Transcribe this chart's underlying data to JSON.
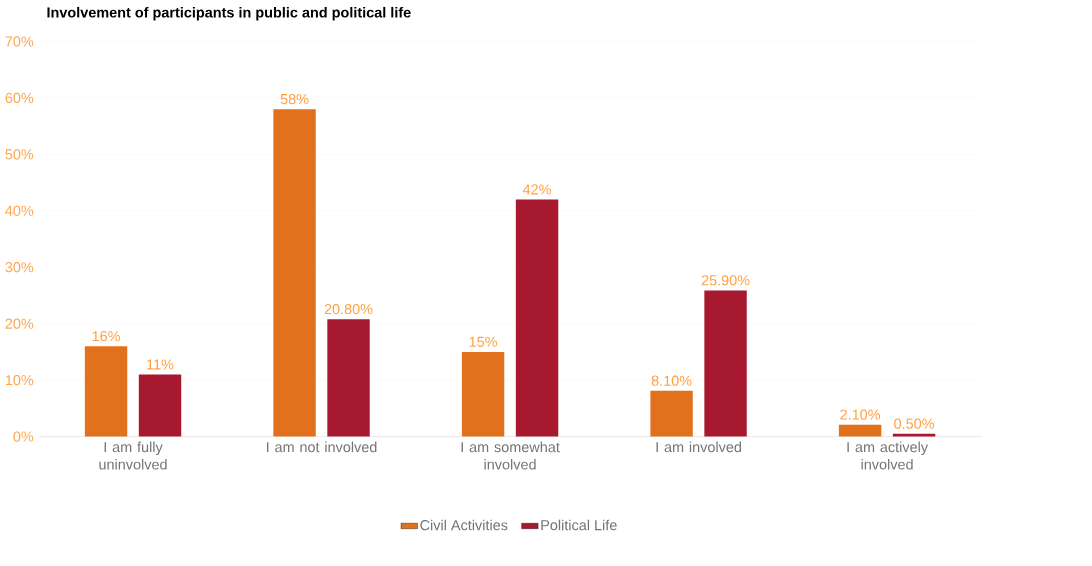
{
  "chart_data": {
    "type": "bar",
    "title": "Involvement of participants in public and political life",
    "categories": [
      "I am fully uninvolved",
      "I am not involved",
      "I am somewhat involved",
      "I am involved",
      "I am actively involved"
    ],
    "series": [
      {
        "name": "Civil Activities",
        "color": "#e2711d",
        "values": [
          16,
          58,
          15,
          8.1,
          2.1
        ],
        "value_labels": [
          "16%",
          "58%",
          "15%",
          "8.10%",
          "2.10%"
        ]
      },
      {
        "name": "Political Life",
        "color": "#a6192e",
        "values": [
          11,
          20.8,
          42,
          25.9,
          0.5
        ],
        "value_labels": [
          "11%",
          "20.80%",
          "42%",
          "25.90%",
          "0.50%"
        ]
      }
    ],
    "ylim": [
      0,
      70
    ],
    "yticks": [
      {
        "value": 0,
        "label": "0%"
      },
      {
        "value": 10,
        "label": "10%"
      },
      {
        "value": 20,
        "label": "20%"
      },
      {
        "value": 30,
        "label": "30%"
      },
      {
        "value": 40,
        "label": "40%"
      },
      {
        "value": 50,
        "label": "50%"
      },
      {
        "value": 60,
        "label": "60%"
      },
      {
        "value": 70,
        "label": "70%"
      }
    ],
    "grid": "y",
    "legend": "bottom"
  }
}
